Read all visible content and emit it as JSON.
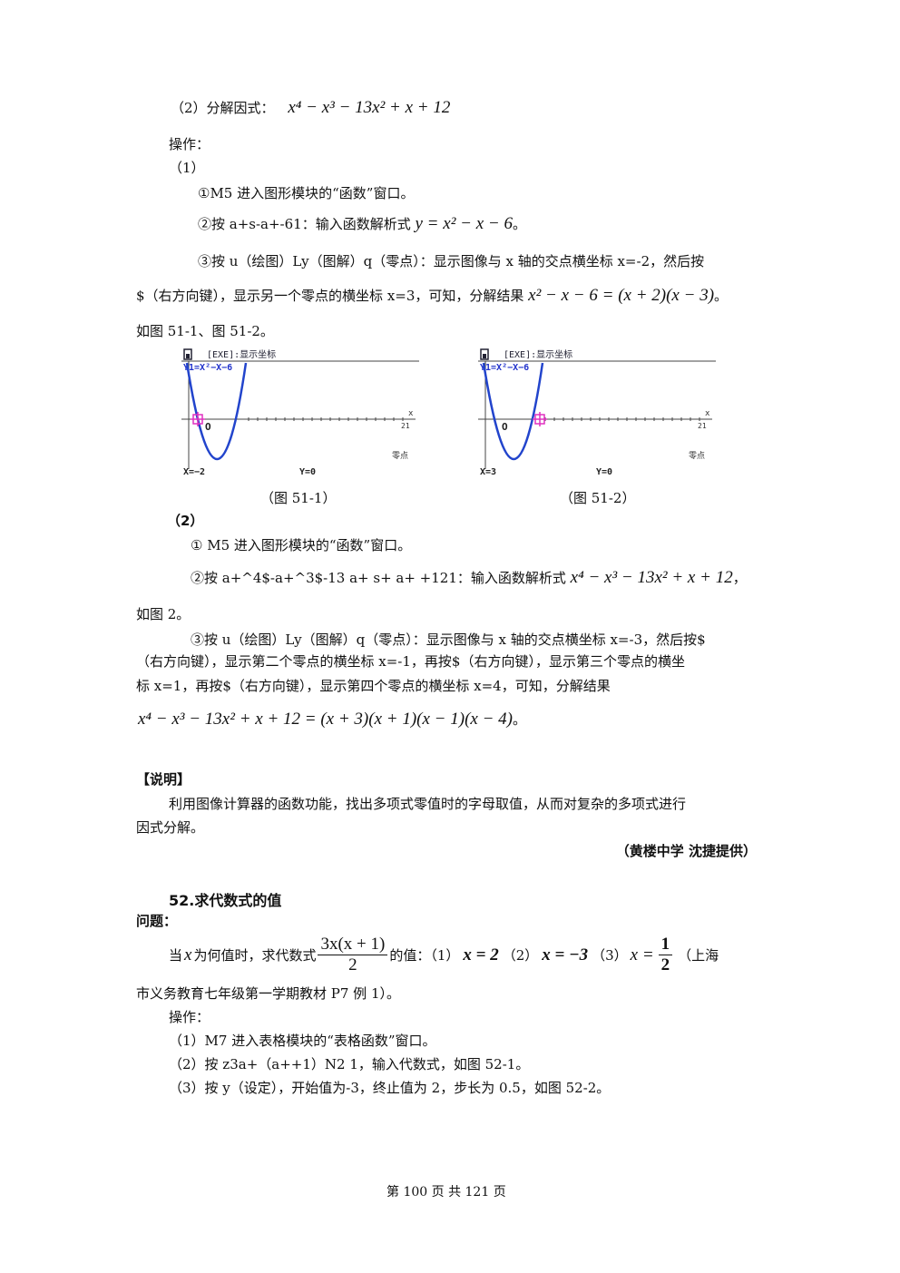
{
  "part2_heading": "（2）分解因式：",
  "part2_expr": "x⁴ − x³ − 13x² + x + 12",
  "ops_label": "操作：",
  "step1_label": "（1）",
  "s1_line1": "①M5 进入图形模块的“函数”窗口。",
  "s1_line2_text": "②按 a+s-a+-61：输入函数解析式",
  "s1_line2_expr": "y = x² − x − 6",
  "s1_line2_end": "。",
  "s1_line3": "③按 u（绘图）Ly（图解）q（零点）：显示图像与 x 轴的交点横坐标 x=-2，然后按",
  "s1_line4_text": "$（右方向键），显示另一个零点的横坐标 x=3，可知，分解结果",
  "s1_line4_expr": "x² − x − 6 = (x + 2)(x − 3)",
  "s1_line4_end": "。",
  "s1_line5": "如图 51-1、图 51-2。",
  "screens": [
    {
      "title": "[EXE]:显示坐标",
      "func": "Y1=X²−X−6",
      "xlab": "x",
      "xmax": "21",
      "origin": "O",
      "mode": "零点",
      "xval": "X=−2",
      "yval": "Y=0",
      "caption": "（图 51-1）"
    },
    {
      "title": "[EXE]:显示坐标",
      "func": "Y1=X²−X−6",
      "xlab": "x",
      "xmax": "21",
      "origin": "O",
      "mode": "零点",
      "xval": "X=3",
      "yval": "Y=0",
      "caption": "（图 51-2）"
    }
  ],
  "step2_label": "（2）",
  "s2_line1": "① M5 进入图形模块的“函数”窗口。",
  "s2_line2_text": "②按 a+^4$-a+^3$-13 a+ s+ a+ +121：输入函数解析式",
  "s2_line2_expr": "x⁴ − x³ − 13x² + x + 12",
  "s2_line2_end": "，",
  "s2_line3": "如图 2。",
  "s2_line4": "③按 u（绘图）Ly（图解）q（零点）：显示图像与 x 轴的交点横坐标 x=-3，然后按$",
  "s2_line5": "（右方向键），显示第二个零点的横坐标 x=-1，再按$（右方向键），显示第三个零点的横坐",
  "s2_line6": "标  x=1，再按$（右方向键），显示第四个零点的横坐标  x=4，可知，分解结果",
  "s2_line7_expr": "x⁴ − x³ − 13x² + x + 12 = (x + 3)(x + 1)(x − 1)(x − 4)",
  "s2_line7_end": "。",
  "note_heading": "【说明】",
  "note_line1": "利用图像计算器的函数功能，找出多项式零值时的字母取值，从而对复杂的多项式进行",
  "note_line2": "因式分解。",
  "credit": "（黄楼中学  沈捷提供）",
  "sec52_title": "52.求代数式的值",
  "problem_label": "问题：",
  "q_text1": "当",
  "q_var": "x",
  "q_text2": "为何值时，求代数式",
  "q_frac_num": "3x(x + 1)",
  "q_frac_den": "2",
  "q_text3": "的值：（1）",
  "q_c1": "x = 2",
  "q_text4": "（2）",
  "q_c2": "x = −3",
  "q_text5": "（3）",
  "q_c3_lhs": "x =",
  "q_c3_num": "1",
  "q_c3_den": "2",
  "q_text6": "（上海",
  "q_line2": "市义务教育七年级第一学期教材 P7 例 1）。",
  "ops2_label": "操作：",
  "o1": "（1）M7 进入表格模块的“表格函数”窗口。",
  "o2": "（2）按 z3a+（a++1）N2 1，输入代数式，如图 52-1。",
  "o3": "（3）按 y（设定），开始值为-3，终止值为 2，步长为 0.5，如图 52-2。",
  "footer": "第 100 页 共 121 页"
}
